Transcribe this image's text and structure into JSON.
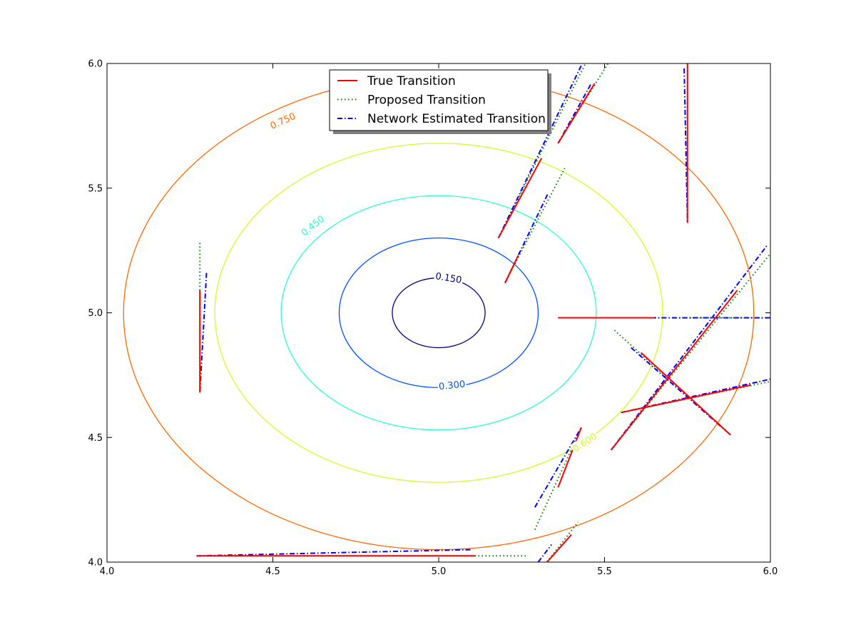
{
  "chart_data": {
    "type": "line",
    "title": "",
    "xlabel": "",
    "ylabel": "",
    "xlim": [
      4.0,
      6.0
    ],
    "ylim": [
      4.0,
      6.0
    ],
    "x_ticks": [
      "4.0",
      "4.5",
      "5.0",
      "5.5",
      "6.0"
    ],
    "y_ticks": [
      "4.0",
      "4.5",
      "5.0",
      "5.5",
      "6.0"
    ],
    "grid": false,
    "legend_position": "top-center",
    "contours": {
      "center": [
        5.0,
        5.0
      ],
      "levels": [
        {
          "level": 0.15,
          "label": "0.150",
          "rx": 0.14,
          "ry": 0.14,
          "color": "#00007f",
          "label_x": 5.03,
          "label_y": 5.14
        },
        {
          "level": 0.3,
          "label": "0.300",
          "rx": 0.3,
          "ry": 0.3,
          "color": "#0050ff",
          "label_x": 5.04,
          "label_y": 4.71
        },
        {
          "level": 0.45,
          "label": "0.450",
          "rx": 0.475,
          "ry": 0.47,
          "color": "#29ffce",
          "label_x": 4.62,
          "label_y": 5.35
        },
        {
          "level": 0.6,
          "label": "0.600",
          "rx": 0.675,
          "ry": 0.68,
          "color": "#ceff29",
          "label_x": 5.44,
          "label_y": 4.48
        },
        {
          "level": 0.75,
          "label": "0.750",
          "rx": 0.95,
          "ry": 0.95,
          "color": "#ff6800",
          "label_x": 4.53,
          "label_y": 5.77
        }
      ]
    },
    "series": [
      {
        "name": "True Transition",
        "color": "#ff0000",
        "style": "solid",
        "segments": [
          [
            [
              4.28,
              5.09
            ],
            [
              4.28,
              4.68
            ]
          ],
          [
            [
              5.18,
              5.3
            ],
            [
              5.31,
              5.62
            ]
          ],
          [
            [
              5.36,
              5.68
            ],
            [
              5.47,
              5.92
            ]
          ],
          [
            [
              5.75,
              6.0
            ],
            [
              5.75,
              5.36
            ]
          ],
          [
            [
              5.2,
              5.12
            ],
            [
              5.24,
              5.23
            ]
          ],
          [
            [
              5.36,
              4.3
            ],
            [
              5.43,
              4.54
            ]
          ],
          [
            [
              5.32,
              3.99
            ],
            [
              5.4,
              4.11
            ]
          ],
          [
            [
              4.27,
              4.025
            ],
            [
              5.11,
              4.025
            ]
          ],
          [
            [
              5.36,
              4.98
            ],
            [
              5.65,
              4.98
            ]
          ],
          [
            [
              5.52,
              4.45
            ],
            [
              5.9,
              5.09
            ]
          ],
          [
            [
              5.55,
              4.6
            ],
            [
              5.94,
              4.71
            ]
          ],
          [
            [
              5.61,
              4.84
            ],
            [
              5.88,
              4.51
            ]
          ]
        ]
      },
      {
        "name": "Proposed Transition",
        "color": "#008000",
        "style": "dotted",
        "segments": [
          [
            [
              4.28,
              5.28
            ],
            [
              4.28,
              4.68
            ]
          ],
          [
            [
              5.18,
              5.3
            ],
            [
              5.45,
              6.02
            ]
          ],
          [
            [
              5.36,
              5.68
            ],
            [
              5.52,
              6.02
            ]
          ],
          [
            [
              5.75,
              6.0
            ],
            [
              5.75,
              5.36
            ]
          ],
          [
            [
              5.2,
              5.12
            ],
            [
              5.38,
              5.58
            ]
          ],
          [
            [
              5.29,
              4.13
            ],
            [
              5.43,
              4.54
            ]
          ],
          [
            [
              5.32,
              3.99
            ],
            [
              5.42,
              4.16
            ]
          ],
          [
            [
              4.27,
              4.025
            ],
            [
              5.27,
              4.025
            ]
          ],
          [
            [
              5.36,
              4.98
            ],
            [
              6.02,
              4.98
            ]
          ],
          [
            [
              5.52,
              4.45
            ],
            [
              6.02,
              5.27
            ]
          ],
          [
            [
              5.55,
              4.6
            ],
            [
              6.02,
              4.73
            ]
          ],
          [
            [
              5.53,
              4.93
            ],
            [
              5.88,
              4.51
            ]
          ]
        ]
      },
      {
        "name": "Network Estimated Transition",
        "color": "#0000ff",
        "style": "dashdot",
        "segments": [
          [
            [
              4.3,
              5.16
            ],
            [
              4.28,
              4.68
            ]
          ],
          [
            [
              5.18,
              5.3
            ],
            [
              5.44,
              6.02
            ]
          ],
          [
            [
              5.36,
              5.68
            ],
            [
              5.46,
              5.92
            ]
          ],
          [
            [
              5.74,
              5.98
            ],
            [
              5.75,
              5.36
            ]
          ],
          [
            [
              5.2,
              5.12
            ],
            [
              5.33,
              5.48
            ]
          ],
          [
            [
              5.29,
              4.22
            ],
            [
              5.43,
              4.54
            ]
          ],
          [
            [
              5.3,
              4.0
            ],
            [
              5.34,
              4.07
            ]
          ],
          [
            [
              4.27,
              4.025
            ],
            [
              5.1,
              4.05
            ]
          ],
          [
            [
              5.36,
              4.98
            ],
            [
              6.02,
              4.98
            ]
          ],
          [
            [
              5.52,
              4.45
            ],
            [
              5.99,
              5.27
            ]
          ],
          [
            [
              5.55,
              4.6
            ],
            [
              6.02,
              4.74
            ]
          ],
          [
            [
              5.58,
              4.86
            ],
            [
              5.88,
              4.51
            ]
          ]
        ]
      }
    ]
  }
}
